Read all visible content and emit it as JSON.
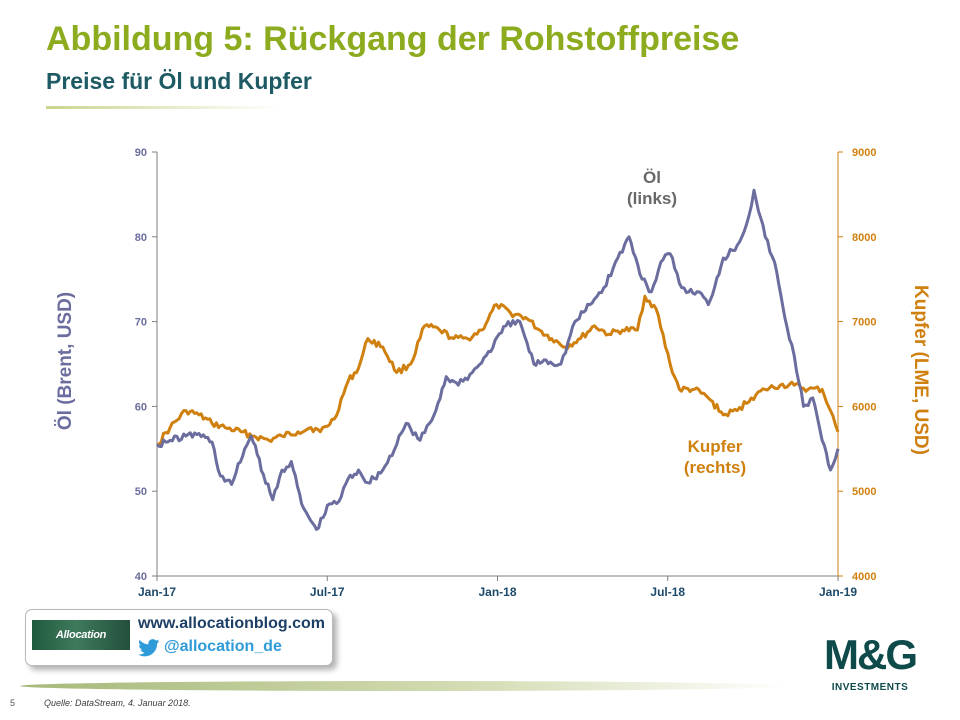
{
  "slide": {
    "title": "Abbildung 5: Rückgang der Rohstoffpreise",
    "subtitle": "Preise für Öl und Kupfer",
    "page_number": "5",
    "source": "Quelle: DataStream, 4. Januar 2018."
  },
  "promo": {
    "logo_text": "Allocation",
    "website": "www.allocationblog.com",
    "twitter_handle": "@allocation_de",
    "twitter_icon": "twitter-bird-icon"
  },
  "brand": {
    "logo_text": "M&G",
    "logo_subtext": "INVESTMENTS"
  },
  "colors": {
    "title": "#8cab1e",
    "subtitle": "#1d5a63",
    "oil": "#6a6d9d",
    "copper": "#d0800f",
    "axis": "#7f7f7f"
  },
  "chart_data": {
    "type": "line",
    "x_ticks": [
      "Jan-17",
      "Jul-17",
      "Jan-18",
      "Jul-18",
      "Jan-19"
    ],
    "x_range": [
      "2017-01",
      "2019-01"
    ],
    "y_left": {
      "label": "Öl (Brent, USD)",
      "range": [
        40,
        90
      ],
      "ticks": [
        "40",
        "50",
        "60",
        "70",
        "80",
        "90"
      ]
    },
    "y_right": {
      "label": "Kupfer (LME, USD)",
      "range": [
        4000,
        9000
      ],
      "ticks": [
        "4000",
        "5000",
        "6000",
        "7000",
        "8000",
        "9000"
      ]
    },
    "annotations": {
      "oil": [
        "Öl",
        "(links)"
      ],
      "copper": [
        "Kupfer",
        "(rechts)"
      ]
    },
    "grid": false,
    "series": [
      {
        "name": "Öl",
        "axis": "left",
        "color": "#6a6d9d",
        "dates": [
          "2017-01-01",
          "2017-01-15",
          "2017-02-01",
          "2017-02-15",
          "2017-03-01",
          "2017-03-10",
          "2017-03-22",
          "2017-04-05",
          "2017-04-12",
          "2017-04-25",
          "2017-05-05",
          "2017-05-15",
          "2017-05-25",
          "2017-06-05",
          "2017-06-15",
          "2017-06-21",
          "2017-07-05",
          "2017-07-15",
          "2017-07-25",
          "2017-08-05",
          "2017-08-15",
          "2017-08-31",
          "2017-09-15",
          "2017-09-25",
          "2017-10-10",
          "2017-10-25",
          "2017-11-07",
          "2017-11-20",
          "2017-12-05",
          "2017-12-20",
          "2018-01-10",
          "2018-01-25",
          "2018-02-09",
          "2018-02-20",
          "2018-03-10",
          "2018-03-25",
          "2018-04-10",
          "2018-04-25",
          "2018-05-10",
          "2018-05-22",
          "2018-06-05",
          "2018-06-15",
          "2018-06-25",
          "2018-07-05",
          "2018-07-15",
          "2018-07-25",
          "2018-08-05",
          "2018-08-15",
          "2018-08-31",
          "2018-09-15",
          "2018-09-25",
          "2018-10-03",
          "2018-10-15",
          "2018-10-25",
          "2018-11-05",
          "2018-11-15",
          "2018-11-25",
          "2018-12-05",
          "2018-12-15",
          "2018-12-24",
          "2019-01-01"
        ],
        "values": [
          55.5,
          56.0,
          56.5,
          56.8,
          55.8,
          51.8,
          50.8,
          55.0,
          56.5,
          52.0,
          49.0,
          52.5,
          53.5,
          48.5,
          46.5,
          45.5,
          48.5,
          48.8,
          51.5,
          52.5,
          51.0,
          52.5,
          55.5,
          58.0,
          56.0,
          59.0,
          63.5,
          62.5,
          64.0,
          66.0,
          69.5,
          70.0,
          65.0,
          65.5,
          65.0,
          70.0,
          72.0,
          74.0,
          77.5,
          80.0,
          75.0,
          73.5,
          77.0,
          78.0,
          74.5,
          73.5,
          73.5,
          72.0,
          77.5,
          79.0,
          81.5,
          85.5,
          80.0,
          77.0,
          70.5,
          66.0,
          60.0,
          61.0,
          56.0,
          52.5,
          55.0
        ]
      },
      {
        "name": "Kupfer",
        "axis": "right",
        "color": "#d0800f",
        "dates": [
          "2017-01-01",
          "2017-01-15",
          "2017-02-01",
          "2017-02-15",
          "2017-03-01",
          "2017-03-15",
          "2017-04-01",
          "2017-04-15",
          "2017-05-01",
          "2017-05-15",
          "2017-06-01",
          "2017-06-15",
          "2017-06-25",
          "2017-07-10",
          "2017-07-25",
          "2017-08-05",
          "2017-08-15",
          "2017-08-31",
          "2017-09-15",
          "2017-09-30",
          "2017-10-15",
          "2017-10-31",
          "2017-11-15",
          "2017-11-30",
          "2017-12-15",
          "2017-12-31",
          "2018-01-15",
          "2018-01-31",
          "2018-02-15",
          "2018-02-28",
          "2018-03-15",
          "2018-03-31",
          "2018-04-15",
          "2018-04-30",
          "2018-05-15",
          "2018-05-31",
          "2018-06-08",
          "2018-06-20",
          "2018-07-05",
          "2018-07-15",
          "2018-07-31",
          "2018-08-15",
          "2018-08-31",
          "2018-09-15",
          "2018-09-30",
          "2018-10-15",
          "2018-10-31",
          "2018-11-15",
          "2018-11-30",
          "2018-12-15",
          "2018-12-24",
          "2019-01-01"
        ],
        "values": [
          5550,
          5750,
          5950,
          5900,
          5800,
          5750,
          5700,
          5650,
          5600,
          5650,
          5700,
          5750,
          5700,
          5850,
          6300,
          6450,
          6800,
          6700,
          6400,
          6500,
          6950,
          6900,
          6800,
          6800,
          6900,
          7200,
          7100,
          7050,
          6900,
          6800,
          6700,
          6800,
          6950,
          6850,
          6900,
          6900,
          7300,
          7150,
          6500,
          6200,
          6200,
          6100,
          5900,
          5950,
          6100,
          6200,
          6250,
          6250,
          6200,
          6200,
          5950,
          5700
        ]
      }
    ]
  }
}
